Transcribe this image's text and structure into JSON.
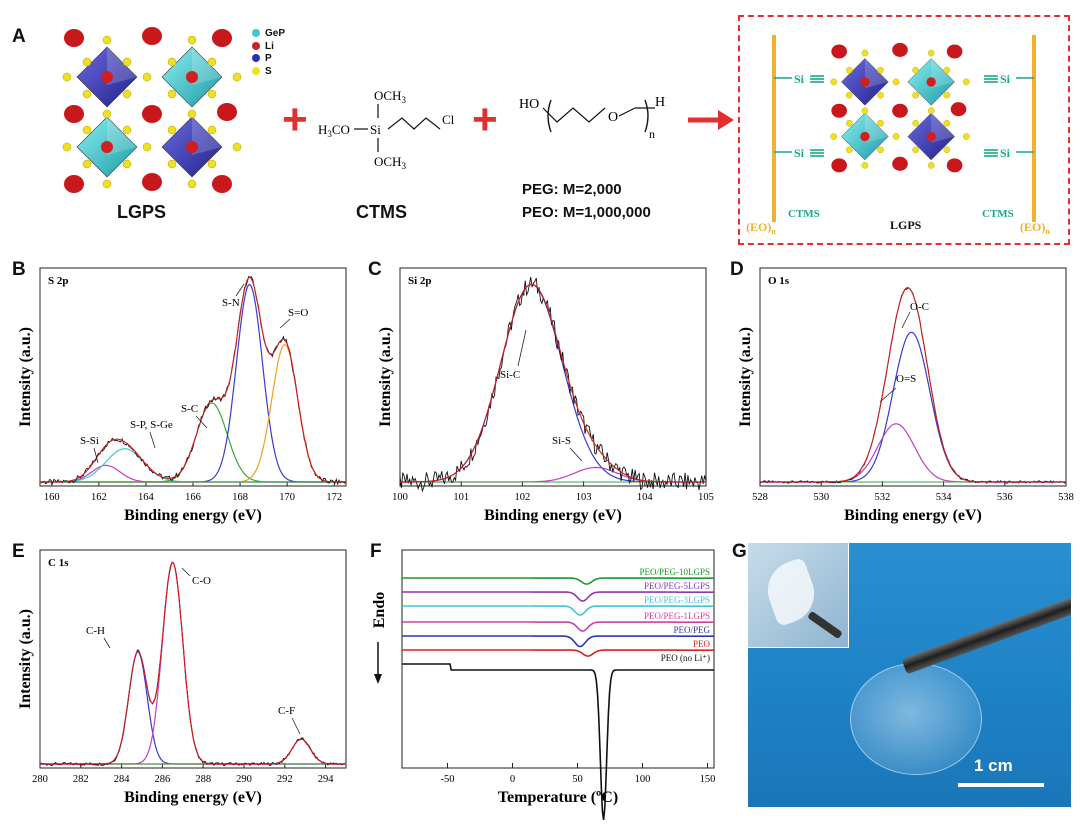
{
  "figure": {
    "A": {
      "label": "A",
      "legend": [
        {
          "name": "GeP",
          "color": "#3fc7cc"
        },
        {
          "name": "Li",
          "color": "#d11f1f"
        },
        {
          "name": "P",
          "color": "#2f2fb0"
        },
        {
          "name": "S",
          "color": "#f0e020"
        }
      ],
      "lgps_label": "LGPS",
      "ctms_label": "CTMS",
      "ctms_formula": {
        "och3_top": "OCH",
        "h3co": "H",
        "co": "CO",
        "si": "Si",
        "cl": "Cl",
        "och3_bottom": "OCH",
        "sub3": "3"
      },
      "peg_formula": {
        "ho": "HO",
        "o": "O",
        "h": "H",
        "n": "n"
      },
      "peg_line": "PEG: M=2,000",
      "peo_line": "PEO: M=1,000,000",
      "composite": {
        "si_labels": [
          "Si",
          "Si",
          "Si",
          "Si"
        ],
        "ctms_left": "CTMS",
        "ctms_right": "CTMS",
        "lgps": "LGPS",
        "eo": "(EO)",
        "eo_sub": "n"
      },
      "colors": {
        "plus": "#e03030",
        "arrow": "#e03030",
        "frame": "#e03030",
        "chain": "#f0b030",
        "si": "#1aa88a"
      }
    },
    "B": {
      "label": "B"
    },
    "C": {
      "label": "C"
    },
    "D": {
      "label": "D"
    },
    "E": {
      "label": "E"
    },
    "F": {
      "label": "F"
    },
    "G": {
      "label": "G",
      "scale_bar": "1 cm"
    }
  },
  "chart_data": [
    {
      "panel": "B",
      "type": "line",
      "title": "S 2p",
      "xlabel": "Binding energy (eV)",
      "ylabel": "Intensity (a.u.)",
      "xlim": [
        159.5,
        172.5
      ],
      "xticks": [
        160,
        162,
        164,
        166,
        168,
        170,
        172
      ],
      "peaks": [
        {
          "name": "S-Si",
          "center": 162.3,
          "height": 0.08
        },
        {
          "name": "S-P, S-Ge",
          "center": 163.1,
          "height": 0.16
        },
        {
          "name": "S-C",
          "center": 166.8,
          "height": 0.38
        },
        {
          "name": "S-N",
          "center": 168.4,
          "height": 0.95
        },
        {
          "name": "S=O",
          "center": 169.9,
          "height": 0.66
        }
      ],
      "annotations": [
        "S-Si",
        "S-P, S-Ge",
        "S-C",
        "S-N",
        "S=O"
      ]
    },
    {
      "panel": "C",
      "type": "line",
      "title": "Si 2p",
      "xlabel": "Binding energy (eV)",
      "ylabel": "Intensity (a.u.)",
      "xlim": [
        100,
        105
      ],
      "xticks": [
        100,
        101,
        102,
        103,
        104,
        105
      ],
      "peaks": [
        {
          "name": "Si-C",
          "center": 102.15,
          "height": 0.95
        },
        {
          "name": "Si-S",
          "center": 103.2,
          "height": 0.07
        }
      ],
      "annotations": [
        "Si-C",
        "Si-S"
      ]
    },
    {
      "panel": "D",
      "type": "line",
      "title": "O 1s",
      "xlabel": "Binding energy (eV)",
      "ylabel": "Intensity (a.u.)",
      "xlim": [
        528,
        538
      ],
      "xticks": [
        528,
        530,
        532,
        534,
        536,
        538
      ],
      "peaks": [
        {
          "name": "O-C",
          "center": 532.95,
          "height": 0.72
        },
        {
          "name": "O=S",
          "center": 532.45,
          "height": 0.28
        }
      ],
      "annotations": [
        "O-C",
        "O=S"
      ]
    },
    {
      "panel": "E",
      "type": "line",
      "title": "C 1s",
      "xlabel": "Binding energy (eV)",
      "ylabel": "Intensity (a.u.)",
      "xlim": [
        280,
        295
      ],
      "xticks": [
        280,
        282,
        284,
        286,
        288,
        290,
        292,
        294
      ],
      "peaks": [
        {
          "name": "C-H",
          "center": 284.8,
          "height": 0.54
        },
        {
          "name": "C-O",
          "center": 286.5,
          "height": 0.97
        },
        {
          "name": "C-F",
          "center": 292.8,
          "height": 0.12
        }
      ],
      "annotations": [
        "C-H",
        "C-O",
        "C-F"
      ]
    },
    {
      "panel": "F",
      "type": "line",
      "title": "",
      "xlabel": "Temperature (ºC)",
      "ylabel": "Endo",
      "xlim": [
        -85,
        155
      ],
      "xticks": [
        -50,
        0,
        50,
        100,
        150
      ],
      "series": [
        {
          "name": "PEO/PEG-10LGPS",
          "color": "#1a9a2a",
          "dip_temp": 57,
          "depth": 0.04
        },
        {
          "name": "PEO/PEG-5LGPS",
          "color": "#8a3ab0",
          "dip_temp": 54,
          "depth": 0.06
        },
        {
          "name": "PEO/PEG-3LGPS",
          "color": "#3fc7d0",
          "dip_temp": 52,
          "depth": 0.06
        },
        {
          "name": "PEO/PEG-1LGPS",
          "color": "#d040a0",
          "dip_temp": 54,
          "depth": 0.06
        },
        {
          "name": "PEO/PEG",
          "color": "#2a3ab0",
          "dip_temp": 52,
          "depth": 0.07
        },
        {
          "name": "PEO",
          "color": "#e02020",
          "dip_temp": 58,
          "depth": 0.04
        },
        {
          "name": "PEO (no Li⁺)",
          "color": "#111111",
          "dip_temp": 70,
          "depth": 0.6
        }
      ]
    }
  ]
}
